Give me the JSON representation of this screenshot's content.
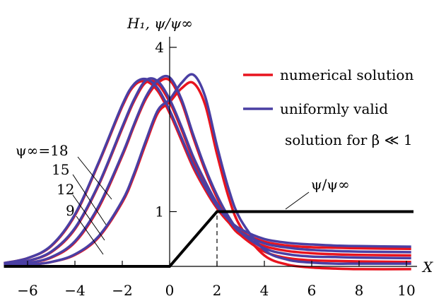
{
  "chart_data": {
    "type": "line",
    "title": "",
    "xlabel": "X",
    "ylabel": "H₁, ψ/ψ∞",
    "xlim": [
      -7,
      10.3
    ],
    "ylim": [
      0,
      4.3
    ],
    "x_ticks": [
      -6,
      -4,
      -2,
      0,
      2,
      4,
      6,
      8,
      10
    ],
    "x_tick_labels": [
      "−6",
      "−4",
      "−2",
      "0",
      "2",
      "4",
      "6",
      "8",
      "10"
    ],
    "y_ticks": [
      1,
      4
    ],
    "y_tick_labels": [
      "1",
      "4"
    ],
    "legend": [
      {
        "label": "numerical solution",
        "color": "#e8141e"
      },
      {
        "label": "uniformly valid",
        "label2": "solution for β ≪ 1",
        "color": "#4a3fa3"
      }
    ],
    "colors": {
      "numerical": "#e8141e",
      "uniform": "#4a3fa3",
      "psi": "#000000"
    },
    "psi_label": "ψ/ψ∞",
    "psi_profile": {
      "name": "ψ/ψ∞",
      "x": [
        -7,
        0,
        2,
        10.3
      ],
      "y": [
        0,
        0,
        1,
        1
      ]
    },
    "dashed_marker": {
      "x": 2,
      "y": [
        0,
        1
      ]
    },
    "curve_labels": [
      {
        "text": "ψ∞=18",
        "psi_inf": 18
      },
      {
        "text": "15",
        "psi_inf": 15
      },
      {
        "text": "12",
        "psi_inf": 12
      },
      {
        "text": "9",
        "psi_inf": 9
      }
    ],
    "series": [
      {
        "psi_inf": 18,
        "kind": "uniform",
        "x": [
          -7,
          -6,
          -5,
          -4,
          -3,
          -2,
          -1.5,
          -1,
          -0.5,
          0,
          0.5,
          1,
          1.5,
          2,
          2.5,
          3,
          4,
          5,
          6,
          7,
          8,
          10.2
        ],
        "y": [
          0.06,
          0.15,
          0.38,
          0.95,
          1.9,
          2.95,
          3.33,
          3.42,
          3.25,
          2.85,
          2.35,
          1.85,
          1.45,
          1.1,
          0.85,
          0.68,
          0.5,
          0.43,
          0.4,
          0.38,
          0.37,
          0.36
        ]
      },
      {
        "psi_inf": 18,
        "kind": "numerical",
        "x": [
          -7,
          -6,
          -5,
          -4,
          -3,
          -2,
          -1.5,
          -1,
          -0.5,
          0,
          0.5,
          1,
          1.5,
          2,
          2.5,
          3,
          4,
          5,
          6,
          7,
          8,
          10.2
        ],
        "y": [
          0.06,
          0.15,
          0.37,
          0.93,
          1.88,
          2.92,
          3.3,
          3.38,
          3.2,
          2.8,
          2.3,
          1.8,
          1.4,
          1.06,
          0.8,
          0.63,
          0.45,
          0.38,
          0.35,
          0.34,
          0.33,
          0.32
        ]
      },
      {
        "psi_inf": 15,
        "kind": "uniform",
        "x": [
          -7,
          -6,
          -5,
          -4,
          -3,
          -2,
          -1.5,
          -1,
          -0.5,
          0,
          0.5,
          1,
          1.5,
          2,
          2.5,
          3,
          4,
          5,
          6,
          7,
          8,
          10.2
        ],
        "y": [
          0.04,
          0.1,
          0.27,
          0.7,
          1.5,
          2.55,
          3.05,
          3.4,
          3.38,
          3.05,
          2.55,
          2.0,
          1.55,
          1.15,
          0.85,
          0.62,
          0.42,
          0.34,
          0.3,
          0.28,
          0.27,
          0.26
        ]
      },
      {
        "psi_inf": 15,
        "kind": "numerical",
        "x": [
          -7,
          -6,
          -5,
          -4,
          -3,
          -2,
          -1.5,
          -1,
          -0.5,
          0,
          0.5,
          1,
          1.5,
          2,
          2.5,
          3,
          4,
          5,
          6,
          7,
          8,
          10.2
        ],
        "y": [
          0.04,
          0.1,
          0.26,
          0.68,
          1.48,
          2.52,
          3.02,
          3.36,
          3.33,
          3.0,
          2.5,
          1.95,
          1.5,
          1.1,
          0.8,
          0.57,
          0.37,
          0.28,
          0.24,
          0.22,
          0.21,
          0.2
        ]
      },
      {
        "psi_inf": 12,
        "kind": "uniform",
        "x": [
          -7,
          -6,
          -5,
          -4,
          -3,
          -2,
          -1.5,
          -1,
          -0.5,
          0,
          0.5,
          1,
          1.5,
          2,
          2.5,
          3,
          4,
          5,
          6,
          7,
          8,
          10.2
        ],
        "y": [
          0.02,
          0.06,
          0.17,
          0.46,
          1.1,
          2.05,
          2.6,
          3.1,
          3.4,
          3.45,
          3.05,
          2.4,
          1.8,
          1.3,
          0.9,
          0.62,
          0.33,
          0.22,
          0.18,
          0.17,
          0.16,
          0.15
        ]
      },
      {
        "psi_inf": 12,
        "kind": "numerical",
        "x": [
          -7,
          -6,
          -5,
          -4,
          -3,
          -2,
          -1.5,
          -1,
          -0.5,
          0,
          0.5,
          1,
          1.5,
          2,
          2.5,
          3,
          4,
          5,
          6,
          7,
          8,
          10.2
        ],
        "y": [
          0.02,
          0.06,
          0.16,
          0.44,
          1.07,
          2.02,
          2.57,
          3.06,
          3.35,
          3.4,
          3.0,
          2.35,
          1.75,
          1.25,
          0.85,
          0.57,
          0.27,
          0.15,
          0.11,
          0.1,
          0.09,
          0.08
        ]
      },
      {
        "psi_inf": 9,
        "kind": "uniform",
        "x": [
          -7,
          -6,
          -5,
          -4,
          -3,
          -2,
          -1.5,
          -1,
          -0.5,
          0,
          0.5,
          1,
          1.5,
          2,
          2.5,
          3,
          4,
          5,
          6,
          7,
          8,
          10.2
        ],
        "y": [
          0.01,
          0.03,
          0.08,
          0.22,
          0.55,
          1.2,
          1.7,
          2.3,
          2.85,
          3.05,
          3.35,
          3.5,
          3.1,
          2.2,
          1.4,
          0.85,
          0.3,
          0.12,
          0.07,
          0.05,
          0.05,
          0.05
        ]
      },
      {
        "psi_inf": 9,
        "kind": "numerical",
        "x": [
          -7,
          -6,
          -5,
          -4,
          -3,
          -2,
          -1.5,
          -1,
          -0.5,
          0,
          0.5,
          1,
          1.5,
          2,
          2.5,
          3,
          4,
          5,
          6,
          7,
          8,
          10.2
        ],
        "y": [
          0.01,
          0.03,
          0.08,
          0.21,
          0.53,
          1.17,
          1.66,
          2.25,
          2.8,
          3.0,
          3.25,
          3.35,
          2.95,
          2.05,
          1.25,
          0.72,
          0.2,
          0.03,
          -0.02,
          -0.04,
          -0.05,
          -0.05
        ]
      }
    ]
  }
}
